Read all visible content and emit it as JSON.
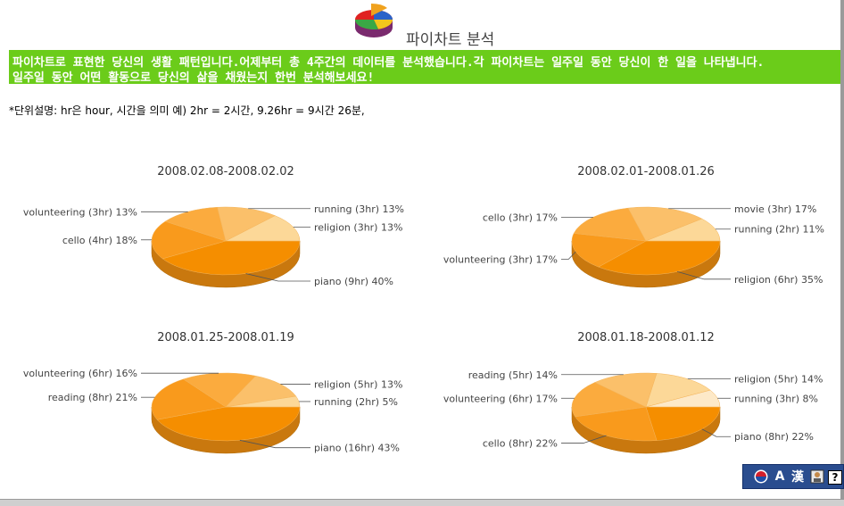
{
  "header": {
    "title": "파이차트 분석",
    "logo_icon": "pie-chart-logo-icon"
  },
  "banner": {
    "line1": "파이차트로 표현한 당신의 생활 패턴입니다.어제부터 총 4주간의 데이터를 분석했습니다.각 파이차트는 일주일 동안 당신이 한 일을 나타냅니다.",
    "line2": "일주일 동안 어떤 활동으로 당신의 삶을 채웠는지 한번 분석해보세요!",
    "background": "#6bcc1a"
  },
  "unit_note": "*단위설명: hr은 hour, 시간을 의미    예) 2hr = 2시간,  9.26hr = 9시간 26분,",
  "colors": {
    "slice_shades": [
      "#fde9c8",
      "#fcd898",
      "#fbc06a",
      "#fbab3e",
      "#f99a1c",
      "#f58e00"
    ],
    "side": "#c9780e"
  },
  "chart_data": [
    {
      "type": "pie",
      "title": "2008.02.08-2008.02.02",
      "slices": [
        {
          "label": "piano (9hr) 40%",
          "value": 40
        },
        {
          "label": "cello (4hr) 18%",
          "value": 18
        },
        {
          "label": "volunteering (3hr) 13%",
          "value": 13
        },
        {
          "label": "running (3hr) 13%",
          "value": 13
        },
        {
          "label": "religion (3hr) 13%",
          "value": 13
        }
      ]
    },
    {
      "type": "pie",
      "title": "2008.02.01-2008.01.26",
      "slices": [
        {
          "label": "religion (6hr) 35%",
          "value": 35
        },
        {
          "label": "volunteering (3hr) 17%",
          "value": 17
        },
        {
          "label": "cello (3hr) 17%",
          "value": 17
        },
        {
          "label": "movie (3hr) 17%",
          "value": 17
        },
        {
          "label": "running (2hr) 11%",
          "value": 11
        }
      ]
    },
    {
      "type": "pie",
      "title": "2008.01.25-2008.01.19",
      "slices": [
        {
          "label": "piano (16hr) 43%",
          "value": 43
        },
        {
          "label": "reading (8hr) 21%",
          "value": 21
        },
        {
          "label": "volunteering (6hr) 16%",
          "value": 16
        },
        {
          "label": "religion (5hr) 13%",
          "value": 13
        },
        {
          "label": "running (2hr) 5%",
          "value": 5
        }
      ]
    },
    {
      "type": "pie",
      "title": "2008.01.18-2008.01.12",
      "slices": [
        {
          "label": "piano (8hr) 22%",
          "value": 22
        },
        {
          "label": "cello (8hr) 22%",
          "value": 22
        },
        {
          "label": "volunteering (6hr) 17%",
          "value": 17
        },
        {
          "label": "reading (5hr) 14%",
          "value": 14
        },
        {
          "label": "religion (5hr) 14%",
          "value": 14
        },
        {
          "label": "running (3hr) 8%",
          "value": 8
        }
      ]
    }
  ],
  "toolbar": {
    "items": [
      {
        "icon": "korean-flag-icon"
      },
      {
        "text": "A"
      },
      {
        "text": "漢"
      },
      {
        "icon": "user-settings-icon"
      },
      {
        "text": "?"
      }
    ]
  }
}
